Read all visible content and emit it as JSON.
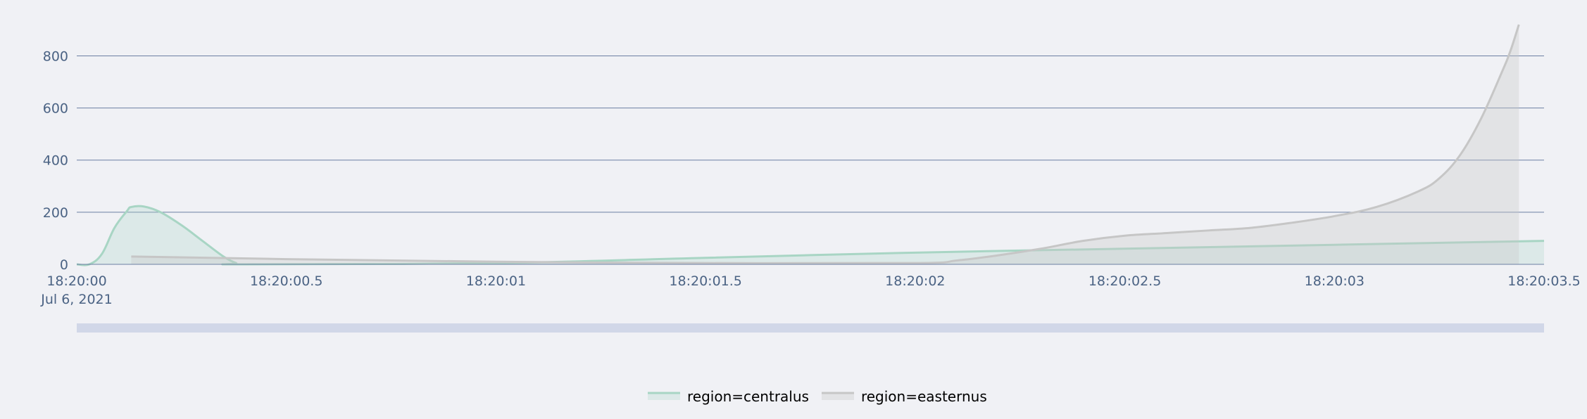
{
  "chart_data": {
    "type": "area",
    "title": "",
    "xlabel": "",
    "ylabel": "",
    "x_axis": {
      "ticks": [
        "18:20:00",
        "18:20:00.5",
        "18:20:01",
        "18:20:01.5",
        "18:20:02",
        "18:20:02.5",
        "18:20:03",
        "18:20:03.5"
      ],
      "tick_values": [
        0,
        0.5,
        1,
        1.5,
        2,
        2.5,
        3,
        3.5
      ],
      "date_label": "Jul 6, 2021",
      "range": [
        0,
        3.5
      ]
    },
    "y_axis": {
      "ticks": [
        "0",
        "200",
        "400",
        "600",
        "800"
      ],
      "tick_values": [
        0,
        200,
        400,
        600,
        800
      ],
      "range": [
        0,
        920
      ]
    },
    "grid": true,
    "legend_position": "bottom-center",
    "series": [
      {
        "name": "region=centralus",
        "color": "#a8d5c4",
        "fill": "rgba(168,213,196,0.28)",
        "points": [
          [
            0,
            0
          ],
          [
            0.03,
            0
          ],
          [
            0.06,
            40
          ],
          [
            0.09,
            140
          ],
          [
            0.12,
            205
          ],
          [
            0.13,
            220
          ],
          [
            0.16,
            222
          ],
          [
            0.2,
            200
          ],
          [
            0.25,
            150
          ],
          [
            0.3,
            90
          ],
          [
            0.35,
            30
          ],
          [
            0.38,
            5
          ],
          [
            0.4,
            0
          ],
          [
            1,
            5
          ],
          [
            1.5,
            25
          ],
          [
            2,
            45
          ],
          [
            2.5,
            60
          ],
          [
            3,
            75
          ],
          [
            3.5,
            90
          ]
        ]
      },
      {
        "name": "region=easternus",
        "color": "#c6c6c6",
        "fill": "rgba(200,200,200,0.35)",
        "points": [
          [
            0.13,
            30
          ],
          [
            0.5,
            20
          ],
          [
            1,
            10
          ],
          [
            1.5,
            5
          ],
          [
            2,
            5
          ],
          [
            2.1,
            15
          ],
          [
            2.2,
            35
          ],
          [
            2.3,
            60
          ],
          [
            2.4,
            90
          ],
          [
            2.5,
            110
          ],
          [
            2.6,
            120
          ],
          [
            2.7,
            130
          ],
          [
            2.8,
            140
          ],
          [
            2.9,
            160
          ],
          [
            3,
            185
          ],
          [
            3.1,
            220
          ],
          [
            3.2,
            280
          ],
          [
            3.25,
            330
          ],
          [
            3.3,
            420
          ],
          [
            3.35,
            560
          ],
          [
            3.4,
            740
          ],
          [
            3.42,
            820
          ],
          [
            3.44,
            920
          ]
        ]
      }
    ]
  }
}
